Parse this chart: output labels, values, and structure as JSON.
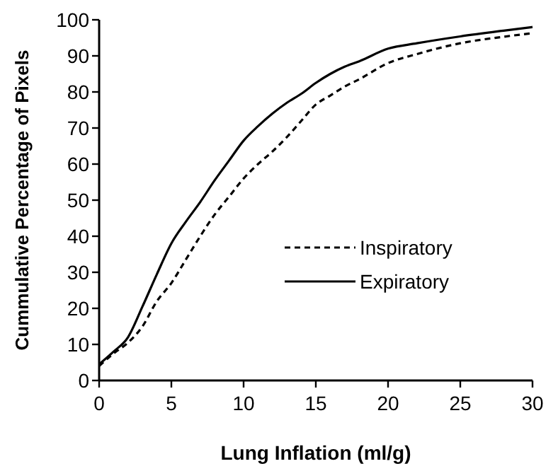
{
  "chart_data": {
    "type": "line",
    "xlabel": "Lung Inflation (ml/g)",
    "ylabel": "Cummulative Percentage of Pixels",
    "x": [
      0,
      1,
      2,
      3,
      4,
      5,
      6,
      7,
      8,
      9,
      10,
      11,
      12,
      13,
      14,
      15,
      16,
      17,
      18,
      20,
      22,
      25,
      28,
      30
    ],
    "series": [
      {
        "name": "Inspiratory",
        "color": "#000000",
        "line_style": "dashed",
        "values": [
          4,
          7.5,
          10.5,
          15,
          22,
          27,
          33.5,
          40,
          46,
          51,
          56,
          60,
          63.5,
          67.5,
          72,
          76.5,
          79,
          81.5,
          83.5,
          88,
          90.5,
          93.5,
          95.3,
          96.3
        ]
      },
      {
        "name": "Expiratory",
        "color": "#000000",
        "line_style": "solid",
        "values": [
          4.5,
          8,
          12,
          20.5,
          29.5,
          38,
          44,
          49.5,
          55.5,
          61,
          66.5,
          70.5,
          74,
          77,
          79.5,
          82.5,
          85,
          87,
          88.5,
          92,
          93.5,
          95.4,
          97,
          98
        ]
      }
    ],
    "xlim": [
      0,
      30
    ],
    "xticks": [
      0,
      5,
      10,
      15,
      20,
      25,
      30
    ],
    "ylim": [
      0,
      100
    ],
    "yticks": [
      0,
      10,
      20,
      30,
      40,
      50,
      60,
      70,
      80,
      90,
      100
    ],
    "grid": false,
    "legend": "right",
    "marker": "none"
  }
}
